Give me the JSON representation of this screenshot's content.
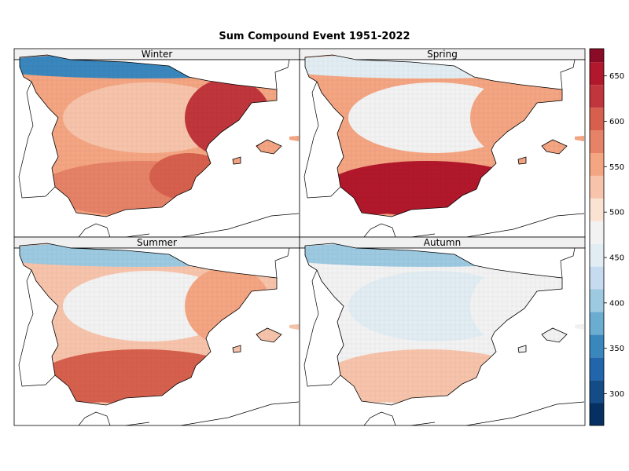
{
  "figure": {
    "title": "Sum Compound Event 1951-2022"
  },
  "chart_data": {
    "type": "heatmap",
    "title": "Sum Compound Event 1951-2022",
    "xlabel": "",
    "ylabel": "",
    "grid": false,
    "legend_position": "right",
    "colormap": "RdBu_r (discrete, 25-unit bins)",
    "colorbar": {
      "range": [
        265,
        680
      ],
      "bin_step": 25,
      "ticks": [
        300,
        350,
        400,
        450,
        500,
        550,
        600,
        650
      ],
      "tick_labels": [
        "300",
        "350",
        "400",
        "450",
        "500",
        "550",
        "600",
        "650"
      ],
      "colors": [
        "#053061",
        "#134c87",
        "#2166ac",
        "#3a87bd",
        "#6bacd1",
        "#9dcae1",
        "#c6dbef",
        "#e1edf3",
        "#f2f2f2",
        "#fbe3d4",
        "#f7c4ab",
        "#f4a582",
        "#e58267",
        "#d6604d",
        "#c0363c",
        "#b2182b",
        "#8a0b25",
        "#67001f"
      ]
    },
    "panels": [
      {
        "name": "Winter",
        "approx_values": {
          "north_coast": 360,
          "central_north": 530,
          "east_coast": 620,
          "south": 575,
          "southeast": 610,
          "mean": 550
        }
      },
      {
        "name": "Spring",
        "approx_values": {
          "north_coast": 450,
          "central_north": 475,
          "east_coast": 540,
          "south": 650,
          "southwest": 660,
          "mean": 540
        }
      },
      {
        "name": "Summer",
        "approx_values": {
          "north_coast": 400,
          "central_north": 470,
          "east_coast": 540,
          "south": 590,
          "southwest": 600,
          "mean": 530
        }
      },
      {
        "name": "Autumn",
        "approx_values": {
          "north_coast": 400,
          "central_north": 450,
          "east_coast": 470,
          "south": 520,
          "southwest": 525,
          "mean": 485
        }
      }
    ]
  }
}
